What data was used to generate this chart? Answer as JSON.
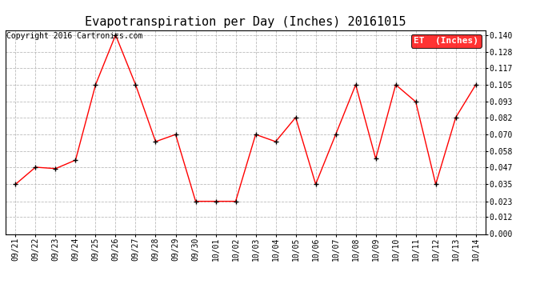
{
  "title": "Evapotranspiration per Day (Inches) 20161015",
  "copyright": "Copyright 2016 Cartronics.com",
  "legend_label": "ET  (Inches)",
  "x_labels": [
    "09/21",
    "09/22",
    "09/23",
    "09/24",
    "09/25",
    "09/26",
    "09/27",
    "09/28",
    "09/29",
    "09/30",
    "10/01",
    "10/02",
    "10/03",
    "10/04",
    "10/05",
    "10/06",
    "10/07",
    "10/08",
    "10/09",
    "10/10",
    "10/11",
    "10/12",
    "10/13",
    "10/14"
  ],
  "y_values": [
    0.035,
    0.047,
    0.046,
    0.052,
    0.105,
    0.14,
    0.105,
    0.065,
    0.07,
    0.023,
    0.023,
    0.023,
    0.07,
    0.065,
    0.082,
    0.035,
    0.07,
    0.105,
    0.053,
    0.105,
    0.093,
    0.035,
    0.082,
    0.105
  ],
  "line_color": "#FF0000",
  "marker_color": "#000000",
  "background_color": "#FFFFFF",
  "grid_color": "#BBBBBB",
  "legend_bg": "#FF0000",
  "legend_fg": "#FFFFFF",
  "copyright_color": "#000000",
  "ylim": [
    0.0,
    0.1435
  ],
  "yticks": [
    0.0,
    0.012,
    0.023,
    0.035,
    0.047,
    0.058,
    0.07,
    0.082,
    0.093,
    0.105,
    0.117,
    0.128,
    0.14
  ],
  "title_fontsize": 11,
  "tick_fontsize": 7,
  "legend_fontsize": 8,
  "copyright_fontsize": 7
}
